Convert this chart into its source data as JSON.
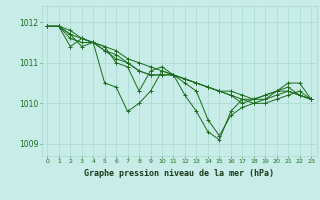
{
  "title": "Graphe pression niveau de la mer (hPa)",
  "background_color": "#c8ece8",
  "line_color": "#1a6b1a",
  "grid_color": "#a8d8d0",
  "xlim": [
    -0.5,
    23.5
  ],
  "ylim": [
    1008.7,
    1012.4
  ],
  "yticks": [
    1009,
    1010,
    1011,
    1012
  ],
  "xticks": [
    0,
    1,
    2,
    3,
    4,
    5,
    6,
    7,
    8,
    9,
    10,
    11,
    12,
    13,
    14,
    15,
    16,
    17,
    18,
    19,
    20,
    21,
    22,
    23
  ],
  "series": [
    [
      1011.9,
      1011.9,
      1011.7,
      1011.4,
      1011.5,
      1010.5,
      1010.4,
      1009.8,
      1010.0,
      1010.3,
      1010.8,
      1010.7,
      1010.5,
      1010.3,
      1009.6,
      1009.2,
      1009.7,
      1009.9,
      1010.0,
      1010.0,
      1010.1,
      1010.2,
      1010.3,
      1010.1
    ],
    [
      1011.9,
      1011.9,
      1011.6,
      1011.5,
      1011.5,
      1011.4,
      1011.3,
      1011.1,
      1011.0,
      1010.9,
      1010.8,
      1010.7,
      1010.6,
      1010.5,
      1010.4,
      1010.3,
      1010.3,
      1010.2,
      1010.1,
      1010.1,
      1010.2,
      1010.3,
      1010.2,
      1010.1
    ],
    [
      1011.9,
      1011.9,
      1011.7,
      1011.6,
      1011.5,
      1011.3,
      1011.2,
      1011.0,
      1010.8,
      1010.7,
      1010.7,
      1010.7,
      1010.6,
      1010.5,
      1010.4,
      1010.3,
      1010.2,
      1010.1,
      1010.1,
      1010.2,
      1010.3,
      1010.3,
      1010.2,
      1010.1
    ],
    [
      1011.9,
      1011.9,
      1011.8,
      1011.6,
      1011.5,
      1011.3,
      1011.1,
      1011.0,
      1010.8,
      1010.7,
      1010.7,
      1010.7,
      1010.6,
      1010.5,
      1010.4,
      1010.3,
      1010.2,
      1010.0,
      1010.1,
      1010.2,
      1010.3,
      1010.4,
      1010.2,
      1010.1
    ],
    [
      1011.9,
      1011.9,
      1011.4,
      1011.6,
      1011.5,
      1011.4,
      1011.0,
      1010.9,
      1010.3,
      1010.8,
      1010.9,
      1010.7,
      1010.2,
      1009.8,
      1009.3,
      1009.1,
      1009.8,
      1010.1,
      1010.0,
      1010.1,
      1010.3,
      1010.5,
      1010.5,
      1010.1
    ]
  ]
}
